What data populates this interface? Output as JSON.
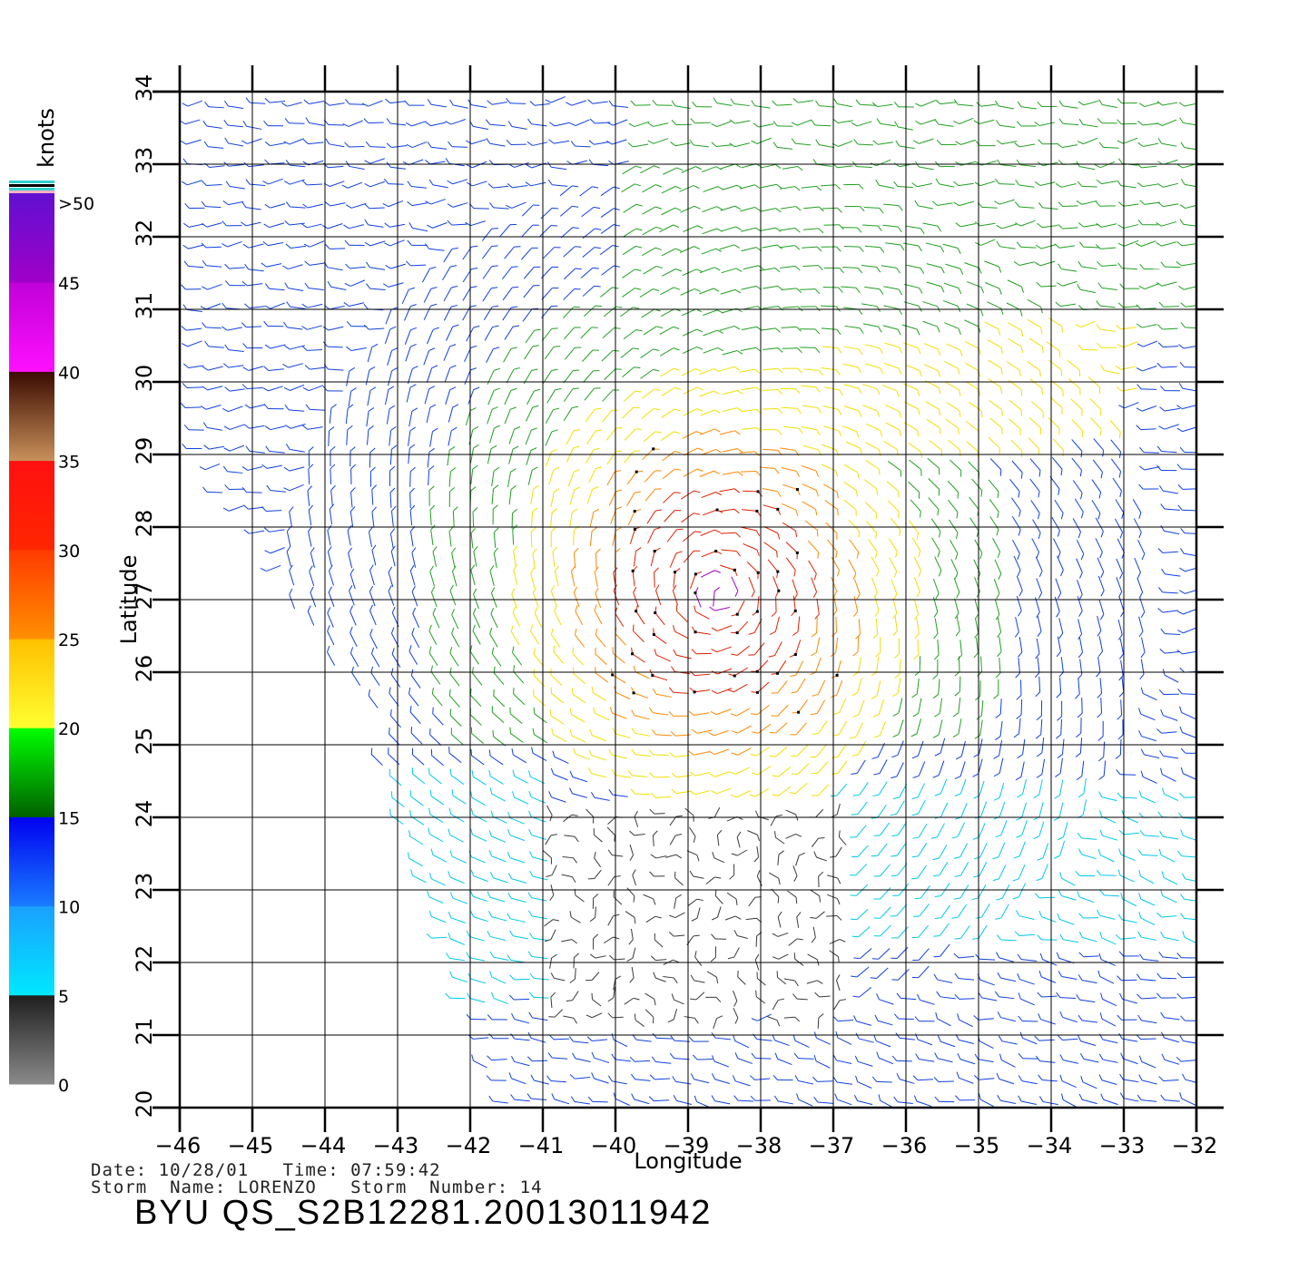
{
  "map": {
    "x_axis_label": "Longitude",
    "y_axis_label": "Latitude",
    "lon_range": [
      -46,
      -32
    ],
    "lat_range": [
      20,
      34
    ],
    "lon_ticks": [
      "−46",
      "−45",
      "−44",
      "−43",
      "−42",
      "−41",
      "−40",
      "−39",
      "−38",
      "−37",
      "−36",
      "−35",
      "−34",
      "−33",
      "−32"
    ],
    "lat_ticks": [
      "20",
      "21",
      "22",
      "23",
      "24",
      "25",
      "26",
      "27",
      "28",
      "29",
      "30",
      "31",
      "32",
      "33",
      "34"
    ]
  },
  "colorbar": {
    "unit": "knots",
    "labels": [
      ">50",
      "45",
      "40",
      "35",
      "30",
      "25",
      "20",
      "15",
      "10",
      "5",
      "0"
    ],
    "stops": [
      {
        "from": 0,
        "to": 5,
        "colors": [
          "#8a8a8a",
          "#1e1e1e"
        ]
      },
      {
        "from": 5,
        "to": 10,
        "colors": [
          "#00e8ff",
          "#1aa0ff"
        ]
      },
      {
        "from": 10,
        "to": 15,
        "colors": [
          "#1a7cff",
          "#0000f0"
        ]
      },
      {
        "from": 15,
        "to": 20,
        "colors": [
          "#006000",
          "#00ff00"
        ]
      },
      {
        "from": 20,
        "to": 25,
        "colors": [
          "#ffff30",
          "#ffc000"
        ]
      },
      {
        "from": 25,
        "to": 30,
        "colors": [
          "#ff9000",
          "#ff3a00"
        ]
      },
      {
        "from": 30,
        "to": 35,
        "colors": [
          "#ff2600",
          "#ff1010"
        ]
      },
      {
        "from": 35,
        "to": 40,
        "colors": [
          "#c8905a",
          "#3a0a00"
        ]
      },
      {
        "from": 40,
        "to": 45,
        "colors": [
          "#ff10ff",
          "#c000d8"
        ]
      },
      {
        "from": 45,
        "to": 50,
        "colors": [
          "#a000c8",
          "#6010d0"
        ]
      }
    ]
  },
  "wind_colors": {
    "calm": "#3a3a3a",
    "light": "#00c8e8",
    "moderate": "#1040e0",
    "fresh": "#20a020",
    "strong": "#f0e000",
    "gale": "#ff8800",
    "storm": "#e02000",
    "violent": "#a000c0"
  },
  "storm": {
    "center_lon": -38.6,
    "center_lat": 27.1
  },
  "footer": {
    "date_line": "Date: 10/28/01   Time: 07:59:42",
    "storm_line": "Storm  Name: LORENZO   Storm  Number: 14",
    "title": "BYU  QS_S2B12281.20013011942"
  }
}
